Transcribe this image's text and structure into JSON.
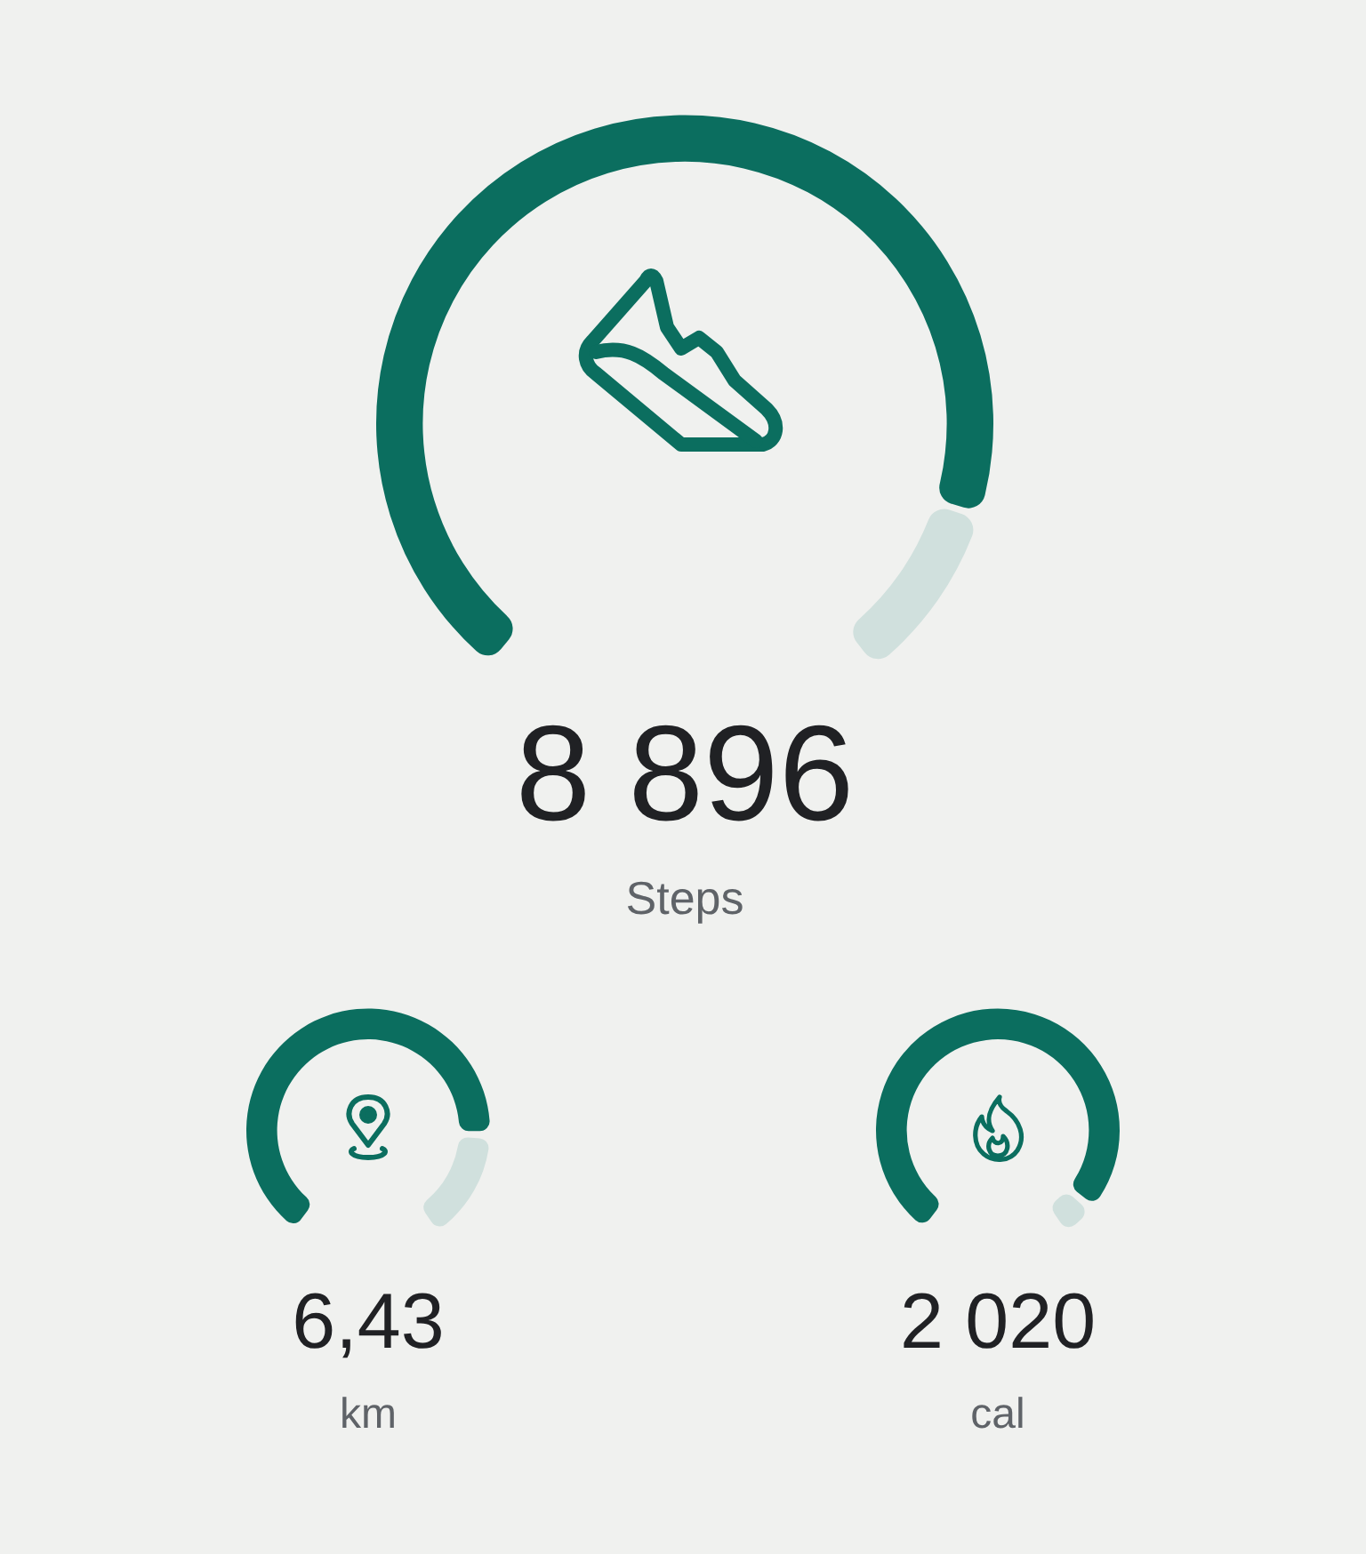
{
  "chart_data": [
    {
      "type": "donut",
      "title": "8 896",
      "subtitle": "Steps",
      "categories": [
        null,
        null
      ],
      "values": [
        88,
        12
      ],
      "colors": [
        "#0b6e5f",
        "#d0e0dd"
      ],
      "legend": false
    },
    {
      "type": "donut",
      "title": "6,43",
      "subtitle": "km",
      "categories": [
        null,
        null
      ],
      "values": [
        82,
        18
      ],
      "colors": [
        "#0b6e5f",
        "#d0e0dd"
      ],
      "legend": false
    },
    {
      "type": "donut",
      "title": "2 020",
      "subtitle": "cal",
      "categories": [
        null,
        null
      ],
      "values": [
        95,
        5
      ],
      "colors": [
        "#0b6e5f",
        "#d0e0dd"
      ],
      "legend": false
    }
  ]
}
